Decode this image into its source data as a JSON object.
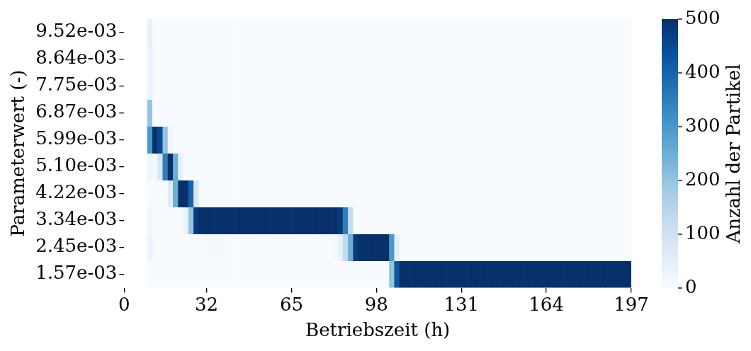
{
  "chart_data": {
    "type": "heatmap",
    "xlabel": "Betriebszeit (h)",
    "ylabel": "Parameterwert (-)",
    "clabel": "Anzahl der Partikel",
    "xlim": [
      0,
      197
    ],
    "xticks": [
      0,
      32,
      65,
      98,
      131,
      164,
      197
    ],
    "x": [
      10,
      12,
      14,
      16,
      18,
      20,
      22,
      24,
      26,
      28,
      30,
      32,
      34,
      36,
      38,
      40,
      42,
      44,
      46,
      48,
      50,
      52,
      54,
      56,
      58,
      60,
      62,
      64,
      66,
      68,
      70,
      72,
      74,
      76,
      78,
      80,
      82,
      84,
      86,
      88,
      90,
      92,
      94,
      96,
      98,
      100,
      102,
      104,
      106,
      108,
      110,
      112,
      114,
      116,
      118,
      120,
      122,
      124,
      126,
      128,
      130,
      132,
      134,
      136,
      138,
      140,
      142,
      144,
      146,
      148,
      150,
      152,
      154,
      156,
      158,
      160,
      162,
      164,
      166,
      168,
      170,
      172,
      174,
      176,
      178,
      180,
      182,
      184,
      186,
      188,
      190,
      192,
      194,
      196
    ],
    "y_categories": [
      "9.52e-03",
      "8.64e-03",
      "7.75e-03",
      "6.87e-03",
      "5.99e-03",
      "5.10e-03",
      "4.22e-03",
      "3.34e-03",
      "2.45e-03",
      "1.57e-03"
    ],
    "cells": [
      [
        40,
        0,
        0,
        0,
        0,
        0,
        0,
        0,
        0,
        0,
        0,
        0,
        0,
        0,
        0,
        0,
        0,
        0,
        0,
        0,
        0,
        0,
        0,
        0,
        0,
        0,
        0,
        0,
        0,
        0,
        0,
        0,
        0,
        0,
        0,
        0,
        0,
        0,
        0,
        0,
        0,
        0,
        0,
        0,
        0,
        0,
        0,
        0,
        0,
        0,
        0,
        0,
        0,
        0,
        0,
        0,
        0,
        0,
        0,
        0,
        0,
        0,
        0,
        0,
        0,
        0,
        0,
        0,
        0,
        0,
        0,
        0,
        0,
        0,
        0,
        0,
        0,
        0,
        0,
        0,
        0,
        0,
        0,
        0,
        0,
        0,
        0,
        0,
        0,
        0,
        0,
        0,
        0,
        0
      ],
      [
        35,
        0,
        0,
        0,
        0,
        0,
        0,
        0,
        0,
        0,
        0,
        0,
        0,
        0,
        0,
        0,
        0,
        0,
        0,
        0,
        0,
        0,
        0,
        0,
        0,
        0,
        0,
        0,
        0,
        0,
        0,
        0,
        0,
        0,
        0,
        0,
        0,
        0,
        0,
        0,
        0,
        0,
        0,
        0,
        0,
        0,
        0,
        0,
        0,
        0,
        0,
        0,
        0,
        0,
        0,
        0,
        0,
        0,
        0,
        0,
        0,
        0,
        0,
        0,
        0,
        0,
        0,
        0,
        0,
        0,
        0,
        0,
        0,
        0,
        0,
        0,
        0,
        0,
        0,
        0,
        0,
        0,
        0,
        0,
        0,
        0,
        0,
        0,
        0,
        0,
        0,
        0,
        0,
        0
      ],
      [
        35,
        0,
        0,
        0,
        0,
        0,
        0,
        0,
        0,
        0,
        0,
        0,
        0,
        0,
        0,
        0,
        0,
        0,
        0,
        0,
        0,
        0,
        0,
        0,
        0,
        0,
        0,
        0,
        0,
        0,
        0,
        0,
        0,
        0,
        0,
        0,
        0,
        0,
        0,
        0,
        0,
        0,
        0,
        0,
        0,
        0,
        0,
        0,
        0,
        0,
        0,
        0,
        0,
        0,
        0,
        0,
        0,
        0,
        0,
        0,
        0,
        0,
        0,
        0,
        0,
        0,
        0,
        0,
        0,
        0,
        0,
        0,
        0,
        0,
        0,
        0,
        0,
        0,
        0,
        0,
        0,
        0,
        0,
        0,
        0,
        0,
        0,
        0,
        0,
        0,
        0,
        0,
        0,
        0
      ],
      [
        200,
        0,
        0,
        0,
        0,
        0,
        0,
        0,
        0,
        0,
        0,
        0,
        0,
        0,
        0,
        0,
        0,
        0,
        0,
        0,
        0,
        0,
        0,
        0,
        0,
        0,
        0,
        0,
        0,
        0,
        0,
        0,
        0,
        0,
        0,
        0,
        0,
        0,
        0,
        0,
        0,
        0,
        0,
        0,
        0,
        0,
        0,
        0,
        0,
        0,
        0,
        0,
        0,
        0,
        0,
        0,
        0,
        0,
        0,
        0,
        0,
        0,
        0,
        0,
        0,
        0,
        0,
        0,
        0,
        0,
        0,
        0,
        0,
        0,
        0,
        0,
        0,
        0,
        0,
        0,
        0,
        0,
        0,
        0,
        0,
        0,
        0,
        0,
        0,
        0,
        0,
        0,
        0,
        0
      ],
      [
        300,
        500,
        450,
        200,
        20,
        0,
        0,
        0,
        0,
        0,
        0,
        0,
        0,
        0,
        0,
        0,
        0,
        0,
        0,
        0,
        0,
        0,
        0,
        0,
        0,
        0,
        0,
        0,
        0,
        0,
        0,
        0,
        0,
        0,
        0,
        0,
        0,
        0,
        0,
        0,
        0,
        0,
        0,
        0,
        0,
        0,
        0,
        0,
        0,
        0,
        0,
        0,
        0,
        0,
        0,
        0,
        0,
        0,
        0,
        0,
        0,
        0,
        0,
        0,
        0,
        0,
        0,
        0,
        0,
        0,
        0,
        0,
        0,
        0,
        0,
        0,
        0,
        0,
        0,
        0,
        0,
        0,
        0,
        0,
        0,
        0,
        0,
        0,
        0,
        0,
        0,
        0,
        0,
        0
      ],
      [
        20,
        10,
        80,
        350,
        500,
        250,
        40,
        0,
        0,
        0,
        0,
        0,
        0,
        0,
        0,
        0,
        0,
        0,
        0,
        0,
        0,
        0,
        0,
        0,
        0,
        0,
        0,
        0,
        0,
        0,
        0,
        0,
        0,
        0,
        0,
        0,
        0,
        0,
        0,
        0,
        0,
        0,
        0,
        0,
        0,
        0,
        0,
        0,
        0,
        0,
        0,
        0,
        0,
        0,
        0,
        0,
        0,
        0,
        0,
        0,
        0,
        0,
        0,
        0,
        0,
        0,
        0,
        0,
        0,
        0,
        0,
        0,
        0,
        0,
        0,
        0,
        0,
        0,
        0,
        0,
        0,
        0,
        0,
        0,
        0,
        0,
        0,
        0,
        0,
        0,
        0,
        0,
        0,
        0
      ],
      [
        0,
        0,
        0,
        0,
        60,
        250,
        500,
        500,
        400,
        80,
        0,
        0,
        0,
        0,
        0,
        0,
        0,
        0,
        0,
        0,
        0,
        0,
        0,
        0,
        0,
        0,
        0,
        0,
        0,
        0,
        0,
        0,
        0,
        0,
        0,
        0,
        0,
        0,
        0,
        0,
        0,
        0,
        0,
        0,
        0,
        0,
        0,
        0,
        0,
        0,
        0,
        0,
        0,
        0,
        0,
        0,
        0,
        0,
        0,
        0,
        0,
        0,
        0,
        0,
        0,
        0,
        0,
        0,
        0,
        0,
        0,
        0,
        0,
        0,
        0,
        0,
        0,
        0,
        0,
        0,
        0,
        0,
        0,
        0,
        0,
        0,
        0,
        0,
        0,
        0,
        0,
        0,
        0,
        0
      ],
      [
        20,
        0,
        0,
        0,
        0,
        0,
        0,
        30,
        200,
        480,
        500,
        500,
        500,
        500,
        500,
        500,
        500,
        500,
        500,
        500,
        500,
        500,
        500,
        500,
        500,
        500,
        500,
        500,
        500,
        500,
        500,
        500,
        500,
        500,
        500,
        500,
        500,
        480,
        350,
        130,
        0,
        0,
        0,
        0,
        0,
        0,
        0,
        0,
        0,
        0,
        0,
        0,
        0,
        0,
        0,
        0,
        0,
        0,
        0,
        0,
        0,
        0,
        0,
        0,
        0,
        0,
        0,
        0,
        0,
        0,
        0,
        0,
        0,
        0,
        0,
        0,
        0,
        0,
        0,
        0,
        0,
        0,
        0,
        0,
        0,
        0,
        0,
        0,
        0,
        0,
        0,
        0,
        0,
        0
      ],
      [
        30,
        0,
        0,
        0,
        0,
        0,
        0,
        0,
        0,
        0,
        0,
        8,
        8,
        8,
        8,
        0,
        0,
        0,
        0,
        0,
        0,
        0,
        0,
        0,
        0,
        0,
        0,
        0,
        0,
        0,
        0,
        0,
        0,
        0,
        0,
        0,
        10,
        40,
        130,
        250,
        480,
        500,
        500,
        500,
        500,
        500,
        500,
        300,
        50,
        0,
        0,
        0,
        0,
        0,
        0,
        0,
        0,
        0,
        0,
        0,
        0,
        0,
        0,
        0,
        0,
        0,
        0,
        0,
        0,
        0,
        0,
        0,
        0,
        0,
        0,
        0,
        0,
        0,
        0,
        0,
        0,
        0,
        0,
        0,
        0,
        0,
        0,
        0,
        0,
        0,
        0,
        0,
        0,
        0
      ],
      [
        0,
        0,
        0,
        0,
        0,
        0,
        0,
        0,
        0,
        0,
        0,
        0,
        0,
        0,
        0,
        0,
        0,
        0,
        0,
        0,
        0,
        0,
        0,
        0,
        0,
        0,
        0,
        0,
        0,
        0,
        0,
        0,
        0,
        0,
        0,
        0,
        0,
        0,
        0,
        0,
        0,
        0,
        0,
        0,
        0,
        0,
        0,
        200,
        430,
        500,
        500,
        500,
        500,
        500,
        500,
        500,
        500,
        500,
        500,
        500,
        500,
        500,
        500,
        500,
        500,
        500,
        500,
        500,
        500,
        500,
        500,
        500,
        500,
        500,
        500,
        500,
        500,
        500,
        500,
        500,
        500,
        500,
        500,
        500,
        500,
        500,
        500,
        500,
        500,
        500,
        500,
        500,
        500,
        500
      ]
    ],
    "clim": [
      0,
      500
    ],
    "cticks": [
      0,
      100,
      200,
      300,
      400,
      500
    ]
  }
}
